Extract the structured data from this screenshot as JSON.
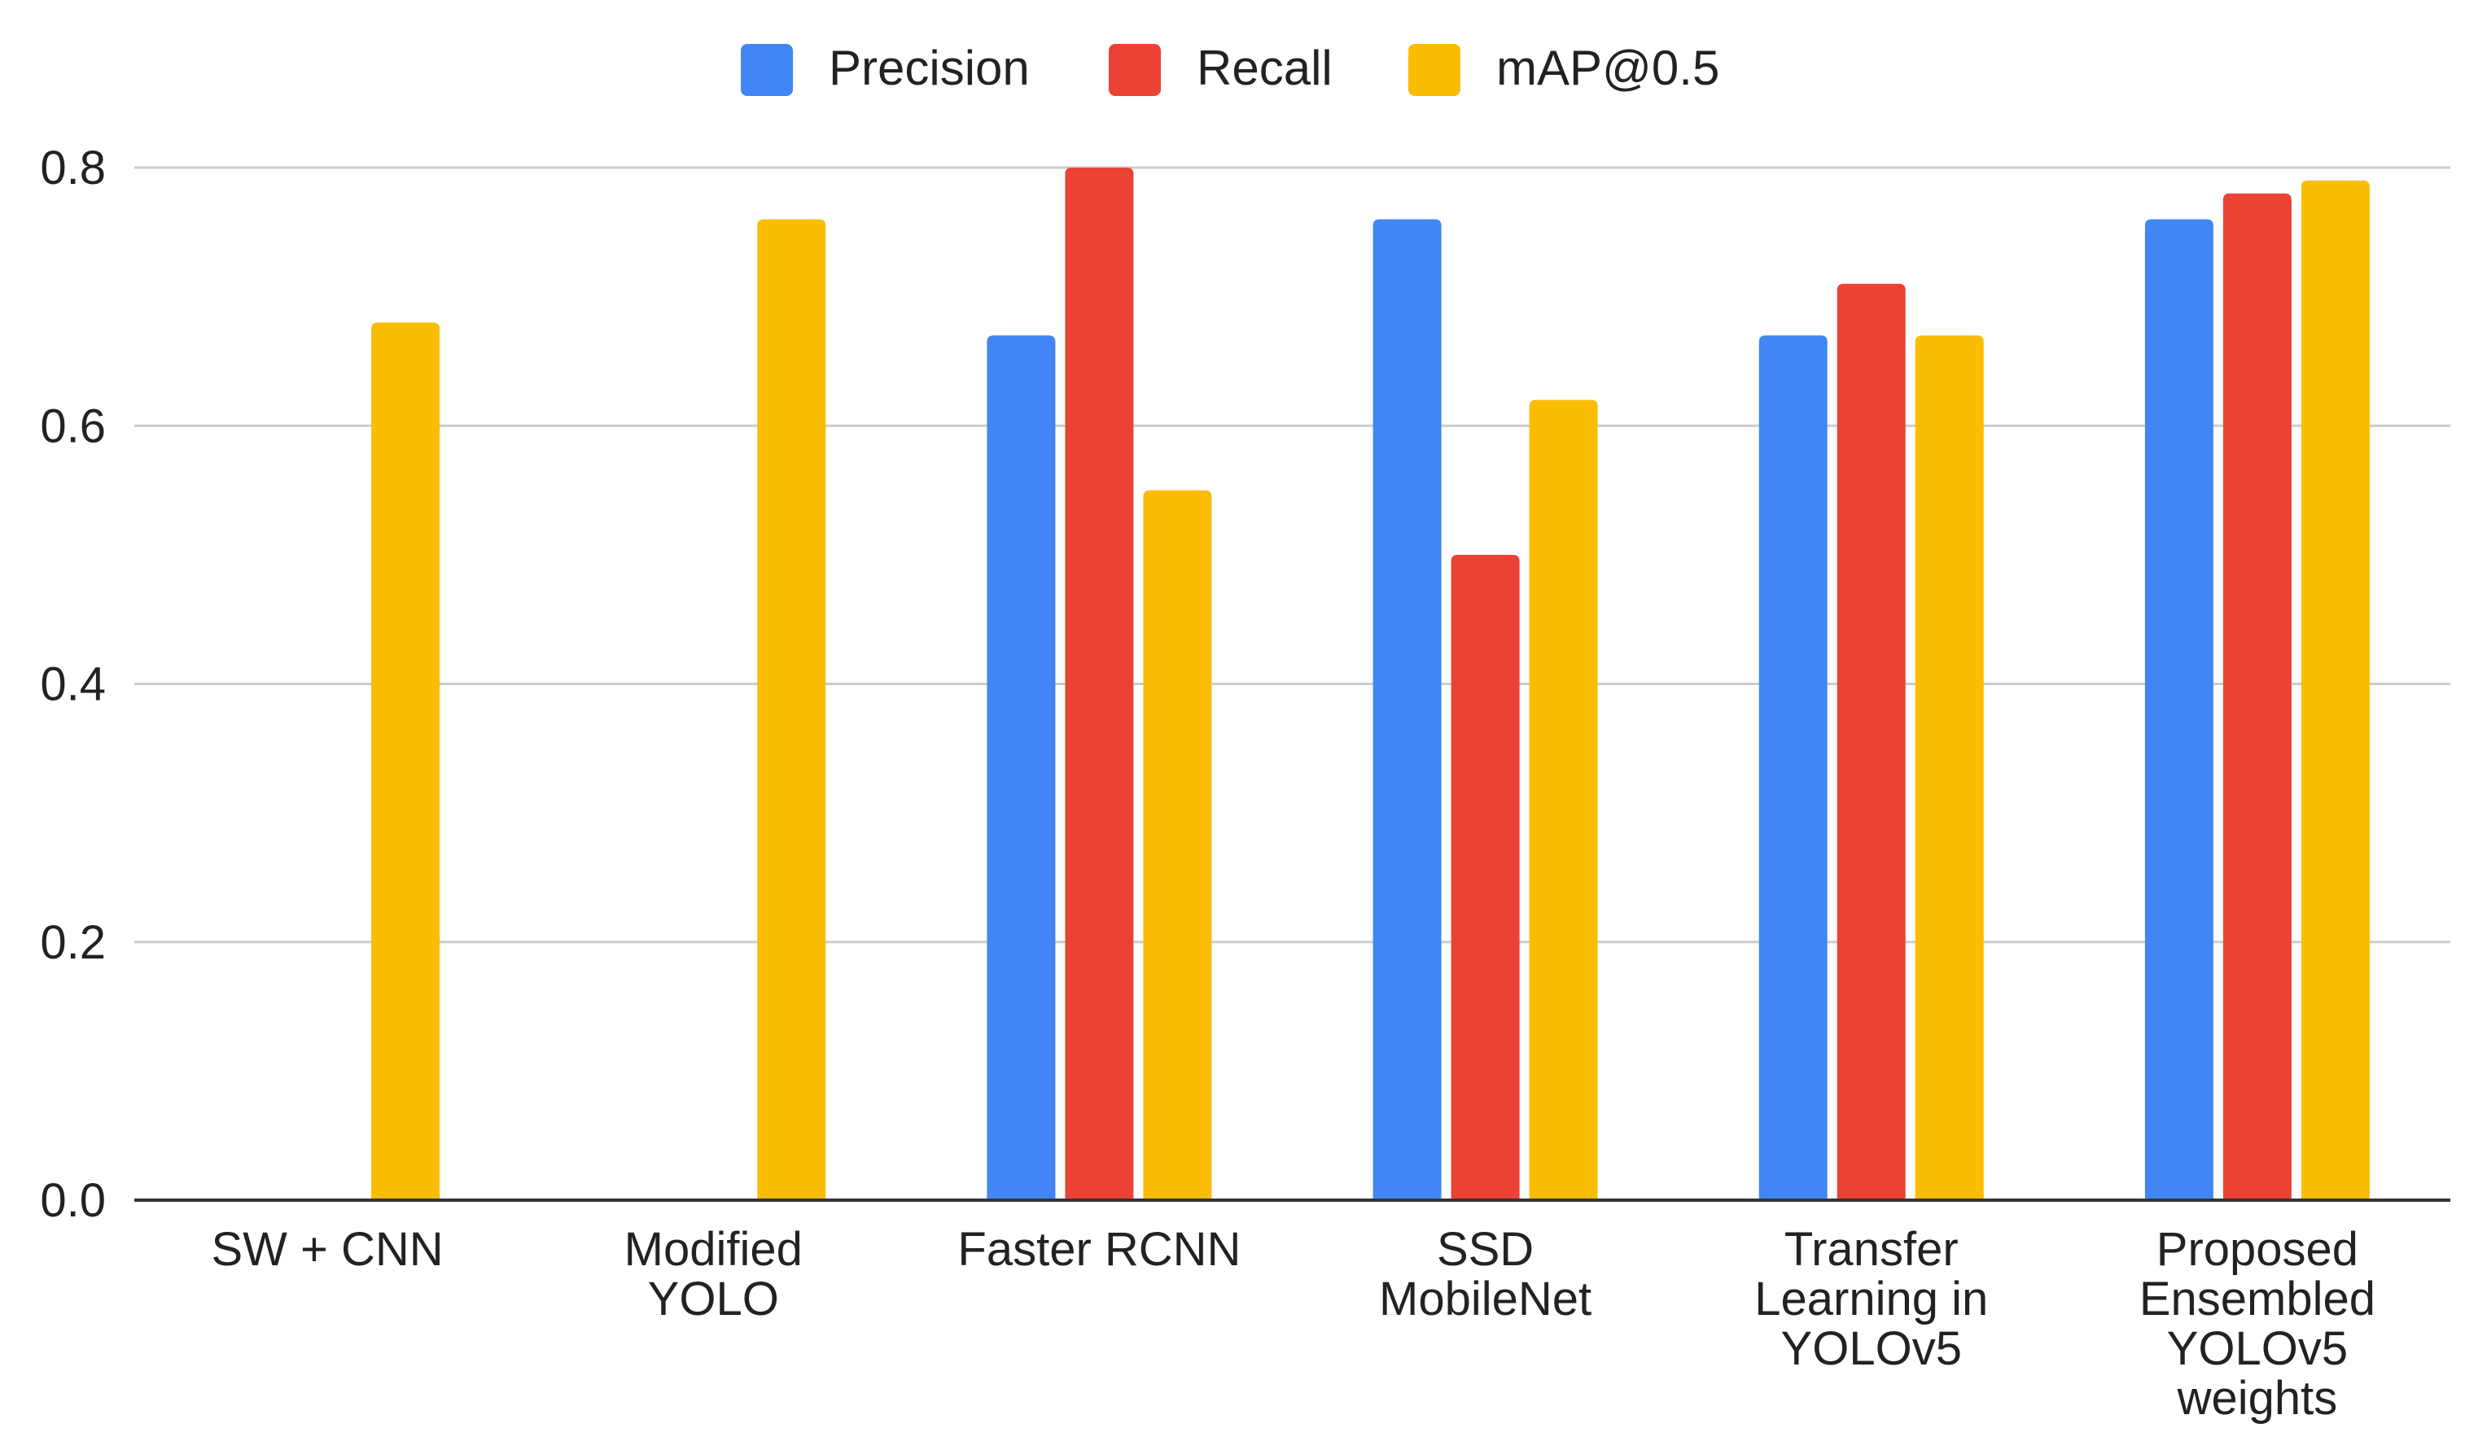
{
  "chart_data": {
    "type": "bar",
    "title": "",
    "xlabel": "",
    "ylabel": "",
    "ylim": [
      0,
      0.8
    ],
    "yticks": [
      "0.0",
      "0.2",
      "0.4",
      "0.6",
      "0.8"
    ],
    "grid": true,
    "legend_position": "top-center",
    "categories": [
      [
        "SW + CNN"
      ],
      [
        "Modified",
        "YOLO"
      ],
      [
        "Faster RCNN"
      ],
      [
        "SSD",
        "MobileNet"
      ],
      [
        "Transfer",
        "Learning in",
        "YOLOv5"
      ],
      [
        "Proposed",
        "Ensembled",
        "YOLOv5",
        "weights"
      ]
    ],
    "series": [
      {
        "name": "Precision",
        "color": "#4285f4",
        "values": [
          null,
          null,
          0.67,
          0.76,
          0.67,
          0.76
        ]
      },
      {
        "name": "Recall",
        "color": "#ea4335",
        "values": [
          null,
          null,
          0.8,
          0.5,
          0.71,
          0.78
        ]
      },
      {
        "name": "mAP@0.5",
        "color": "#fbbc04",
        "values": [
          0.68,
          0.76,
          0.55,
          0.62,
          0.67,
          0.79
        ]
      }
    ]
  }
}
